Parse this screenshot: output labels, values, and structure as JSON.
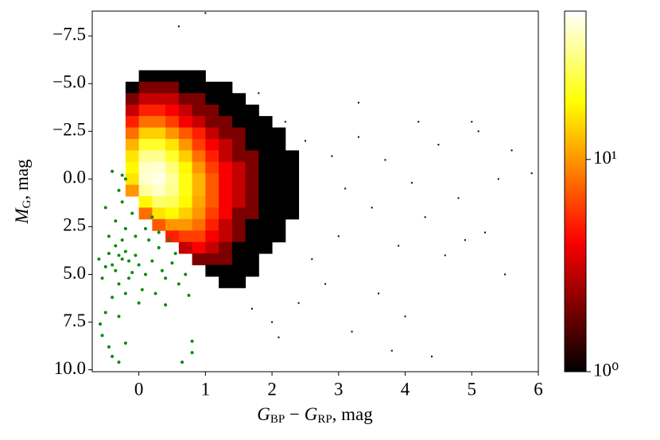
{
  "chart_data": {
    "type": "hist2d",
    "xlabel": [
      "G",
      "BP",
      " − ",
      "G",
      "RP",
      ", mag"
    ],
    "ylabel": [
      "M",
      "G",
      ", mag"
    ],
    "xlim": [
      -0.7,
      6
    ],
    "ylim": [
      -8.8,
      10.1
    ],
    "xticks": [
      0,
      1,
      2,
      3,
      4,
      5,
      6
    ],
    "yticks": [
      {
        "value": -7.5,
        "label": "−7.5"
      },
      {
        "value": -5,
        "label": "−5.0"
      },
      {
        "value": -2.5,
        "label": "−2.5"
      },
      {
        "value": 0,
        "label": "0.0"
      },
      2.5,
      {
        "value": 5,
        "label": "5.0"
      },
      7.5,
      {
        "value": 10,
        "label": "10.0"
      }
    ],
    "colormap": "hot",
    "color_scale": "log",
    "clim": [
      1,
      50
    ],
    "cticks": [
      {
        "value": 1,
        "label": "10⁰"
      },
      {
        "value": 10,
        "label": "10¹"
      }
    ],
    "cells": [
      [
        0.1,
        -5.4,
        1
      ],
      [
        0.3,
        -5.4,
        1
      ],
      [
        0.5,
        -5.4,
        1
      ],
      [
        0.7,
        -5.4,
        1
      ],
      [
        0.9,
        -5.4,
        1
      ],
      [
        -0.1,
        -4.8,
        1
      ],
      [
        0.1,
        -4.8,
        2
      ],
      [
        0.3,
        -4.8,
        2
      ],
      [
        0.5,
        -4.8,
        2
      ],
      [
        0.7,
        -4.8,
        1
      ],
      [
        0.9,
        -4.8,
        1
      ],
      [
        1.1,
        -4.8,
        1
      ],
      [
        1.3,
        -4.8,
        1
      ],
      [
        -0.1,
        -4.2,
        2
      ],
      [
        0.1,
        -4.2,
        3
      ],
      [
        0.3,
        -4.2,
        3
      ],
      [
        0.5,
        -4.2,
        3
      ],
      [
        0.7,
        -4.2,
        2
      ],
      [
        0.9,
        -4.2,
        2
      ],
      [
        1.1,
        -4.2,
        1
      ],
      [
        1.3,
        -4.2,
        1
      ],
      [
        1.5,
        -4.2,
        1
      ],
      [
        -0.1,
        -3.6,
        3
      ],
      [
        0.1,
        -3.6,
        5
      ],
      [
        0.3,
        -3.6,
        5
      ],
      [
        0.5,
        -3.6,
        4
      ],
      [
        0.7,
        -3.6,
        3
      ],
      [
        0.9,
        -3.6,
        2
      ],
      [
        1.1,
        -3.6,
        2
      ],
      [
        1.3,
        -3.6,
        1
      ],
      [
        1.5,
        -3.6,
        1
      ],
      [
        1.7,
        -3.6,
        1
      ],
      [
        -0.1,
        -3.0,
        5
      ],
      [
        0.1,
        -3.0,
        8
      ],
      [
        0.3,
        -3.0,
        8
      ],
      [
        0.5,
        -3.0,
        6
      ],
      [
        0.7,
        -3.0,
        4
      ],
      [
        0.9,
        -3.0,
        3
      ],
      [
        1.1,
        -3.0,
        2
      ],
      [
        1.3,
        -3.0,
        2
      ],
      [
        1.5,
        -3.0,
        1
      ],
      [
        1.7,
        -3.0,
        1
      ],
      [
        1.9,
        -3.0,
        1
      ],
      [
        -0.1,
        -2.4,
        8
      ],
      [
        0.1,
        -2.4,
        14
      ],
      [
        0.3,
        -2.4,
        14
      ],
      [
        0.5,
        -2.4,
        10
      ],
      [
        0.7,
        -2.4,
        7
      ],
      [
        0.9,
        -2.4,
        5
      ],
      [
        1.1,
        -2.4,
        3
      ],
      [
        1.3,
        -2.4,
        2
      ],
      [
        1.5,
        -2.4,
        2
      ],
      [
        1.7,
        -2.4,
        1
      ],
      [
        1.9,
        -2.4,
        1
      ],
      [
        2.1,
        -2.4,
        1
      ],
      [
        -0.1,
        -1.8,
        12
      ],
      [
        0.1,
        -1.8,
        22
      ],
      [
        0.3,
        -1.8,
        22
      ],
      [
        0.5,
        -1.8,
        16
      ],
      [
        0.7,
        -1.8,
        10
      ],
      [
        0.9,
        -1.8,
        6
      ],
      [
        1.1,
        -1.8,
        4
      ],
      [
        1.3,
        -1.8,
        3
      ],
      [
        1.5,
        -1.8,
        2
      ],
      [
        1.7,
        -1.8,
        1
      ],
      [
        1.9,
        -1.8,
        1
      ],
      [
        2.1,
        -1.8,
        1
      ],
      [
        -0.1,
        -1.2,
        16
      ],
      [
        0.1,
        -1.2,
        32
      ],
      [
        0.3,
        -1.2,
        32
      ],
      [
        0.5,
        -1.2,
        22
      ],
      [
        0.7,
        -1.2,
        14
      ],
      [
        0.9,
        -1.2,
        8
      ],
      [
        1.1,
        -1.2,
        5
      ],
      [
        1.3,
        -1.2,
        3
      ],
      [
        1.5,
        -1.2,
        2
      ],
      [
        1.7,
        -1.2,
        2
      ],
      [
        1.9,
        -1.2,
        1
      ],
      [
        2.1,
        -1.2,
        1
      ],
      [
        2.3,
        -1.2,
        1
      ],
      [
        -0.1,
        -0.6,
        18
      ],
      [
        0.1,
        -0.6,
        40
      ],
      [
        0.3,
        -0.6,
        42
      ],
      [
        0.5,
        -0.6,
        30
      ],
      [
        0.7,
        -0.6,
        18
      ],
      [
        0.9,
        -0.6,
        10
      ],
      [
        1.1,
        -0.6,
        6
      ],
      [
        1.3,
        -0.6,
        4
      ],
      [
        1.5,
        -0.6,
        3
      ],
      [
        1.7,
        -0.6,
        2
      ],
      [
        1.9,
        -0.6,
        1
      ],
      [
        2.1,
        -0.6,
        1
      ],
      [
        2.3,
        -0.6,
        1
      ],
      [
        -0.1,
        0,
        16
      ],
      [
        0.1,
        0,
        42
      ],
      [
        0.3,
        0,
        45
      ],
      [
        0.5,
        0,
        34
      ],
      [
        0.7,
        0,
        20
      ],
      [
        0.9,
        0,
        12
      ],
      [
        1.1,
        0,
        7
      ],
      [
        1.3,
        0,
        4
      ],
      [
        1.5,
        0,
        3
      ],
      [
        1.7,
        0,
        2
      ],
      [
        1.9,
        0,
        1
      ],
      [
        2.1,
        0,
        1
      ],
      [
        2.3,
        0,
        1
      ],
      [
        -0.1,
        0.6,
        10
      ],
      [
        0.1,
        0.6,
        34
      ],
      [
        0.3,
        0.6,
        40
      ],
      [
        0.5,
        0.6,
        32
      ],
      [
        0.7,
        0.6,
        20
      ],
      [
        0.9,
        0.6,
        12
      ],
      [
        1.1,
        0.6,
        7
      ],
      [
        1.3,
        0.6,
        4
      ],
      [
        1.5,
        0.6,
        3
      ],
      [
        1.7,
        0.6,
        2
      ],
      [
        1.9,
        0.6,
        1
      ],
      [
        2.1,
        0.6,
        1
      ],
      [
        2.3,
        0.6,
        1
      ],
      [
        0.1,
        1.2,
        18
      ],
      [
        0.3,
        1.2,
        28
      ],
      [
        0.5,
        1.2,
        26
      ],
      [
        0.7,
        1.2,
        18
      ],
      [
        0.9,
        1.2,
        11
      ],
      [
        1.1,
        1.2,
        7
      ],
      [
        1.3,
        1.2,
        4
      ],
      [
        1.5,
        1.2,
        3
      ],
      [
        1.7,
        1.2,
        2
      ],
      [
        1.9,
        1.2,
        1
      ],
      [
        2.1,
        1.2,
        1
      ],
      [
        2.3,
        1.2,
        1
      ],
      [
        0.1,
        1.8,
        8
      ],
      [
        0.3,
        1.8,
        16
      ],
      [
        0.5,
        1.8,
        18
      ],
      [
        0.7,
        1.8,
        14
      ],
      [
        0.9,
        1.8,
        10
      ],
      [
        1.1,
        1.8,
        6
      ],
      [
        1.3,
        1.8,
        4
      ],
      [
        1.5,
        1.8,
        2
      ],
      [
        1.7,
        1.8,
        2
      ],
      [
        1.9,
        1.8,
        1
      ],
      [
        2.1,
        1.8,
        1
      ],
      [
        2.3,
        1.8,
        1
      ],
      [
        0.3,
        2.4,
        7
      ],
      [
        0.5,
        2.4,
        10
      ],
      [
        0.7,
        2.4,
        10
      ],
      [
        0.9,
        2.4,
        8
      ],
      [
        1.1,
        2.4,
        5
      ],
      [
        1.3,
        2.4,
        3
      ],
      [
        1.5,
        2.4,
        2
      ],
      [
        1.7,
        2.4,
        1
      ],
      [
        1.9,
        2.4,
        1
      ],
      [
        2.1,
        2.4,
        1
      ],
      [
        0.5,
        3.0,
        5
      ],
      [
        0.7,
        3.0,
        6
      ],
      [
        0.9,
        3.0,
        6
      ],
      [
        1.1,
        3.0,
        4
      ],
      [
        1.3,
        3.0,
        3
      ],
      [
        1.5,
        3.0,
        2
      ],
      [
        1.7,
        3.0,
        1
      ],
      [
        1.9,
        3.0,
        1
      ],
      [
        2.1,
        3.0,
        1
      ],
      [
        0.7,
        3.6,
        3
      ],
      [
        0.9,
        3.6,
        4
      ],
      [
        1.1,
        3.6,
        3
      ],
      [
        1.3,
        3.6,
        2
      ],
      [
        1.5,
        3.6,
        1
      ],
      [
        1.7,
        3.6,
        1
      ],
      [
        1.9,
        3.6,
        1
      ],
      [
        0.9,
        4.2,
        2
      ],
      [
        1.1,
        4.2,
        2
      ],
      [
        1.3,
        4.2,
        2
      ],
      [
        1.5,
        4.2,
        1
      ],
      [
        1.7,
        4.2,
        1
      ],
      [
        1.1,
        4.8,
        1
      ],
      [
        1.3,
        4.8,
        1
      ],
      [
        1.5,
        4.8,
        1
      ],
      [
        1.7,
        4.8,
        1
      ],
      [
        1.3,
        5.4,
        1
      ],
      [
        1.5,
        5.4,
        1
      ]
    ],
    "sparse": [
      [
        1.8,
        -4.5
      ],
      [
        2.2,
        -3.0
      ],
      [
        2.5,
        -2.0
      ],
      [
        2.9,
        -1.2
      ],
      [
        3.1,
        0.5
      ],
      [
        3.3,
        -2.2
      ],
      [
        3.5,
        1.5
      ],
      [
        3.7,
        -1.0
      ],
      [
        3.9,
        3.5
      ],
      [
        4.1,
        0.2
      ],
      [
        4.3,
        2.0
      ],
      [
        4.5,
        -1.8
      ],
      [
        4.6,
        4.0
      ],
      [
        4.8,
        1.0
      ],
      [
        5.0,
        -3.0
      ],
      [
        5.2,
        2.8
      ],
      [
        5.4,
        0.0
      ],
      [
        5.6,
        -1.5
      ],
      [
        5.9,
        -0.3
      ],
      [
        2.4,
        6.5
      ],
      [
        3.2,
        8.0
      ],
      [
        2.8,
        5.5
      ],
      [
        4.0,
        7.2
      ],
      [
        3.6,
        6.0
      ],
      [
        1.7,
        6.8
      ],
      [
        2.0,
        7.5
      ],
      [
        4.4,
        9.3
      ],
      [
        5.1,
        -2.5
      ],
      [
        3.0,
        3.0
      ],
      [
        2.6,
        4.2
      ],
      [
        5.5,
        5.0
      ],
      [
        4.9,
        3.2
      ],
      [
        2.1,
        8.3
      ],
      [
        3.8,
        9.0
      ],
      [
        1.0,
        -8.7
      ],
      [
        0.6,
        -8.0
      ],
      [
        3.3,
        -4.0
      ],
      [
        4.2,
        -3.0
      ]
    ],
    "scatter": {
      "color": "#0a8a0a",
      "points": [
        [
          -0.35,
          3.5
        ],
        [
          -0.3,
          4.0
        ],
        [
          -0.4,
          4.5
        ],
        [
          -0.25,
          4.2
        ],
        [
          -0.2,
          3.8
        ],
        [
          -0.45,
          3.9
        ],
        [
          -0.5,
          4.6
        ],
        [
          -0.1,
          4.9
        ],
        [
          -0.15,
          5.2
        ],
        [
          0.0,
          4.5
        ],
        [
          0.1,
          5.0
        ],
        [
          0.2,
          4.3
        ],
        [
          0.3,
          3.6
        ],
        [
          -0.3,
          5.5
        ],
        [
          -0.2,
          6.0
        ],
        [
          0.05,
          5.8
        ],
        [
          0.4,
          5.2
        ],
        [
          0.5,
          4.4
        ],
        [
          0.6,
          5.5
        ],
        [
          0.7,
          5.0
        ],
        [
          -0.05,
          3.0
        ],
        [
          -0.2,
          2.6
        ],
        [
          -0.35,
          2.2
        ],
        [
          -0.1,
          1.8
        ],
        [
          -0.25,
          1.2
        ],
        [
          -0.3,
          0.6
        ],
        [
          -0.2,
          0.0
        ],
        [
          -0.4,
          -0.4
        ],
        [
          -0.25,
          -0.2
        ],
        [
          -0.5,
          1.5
        ],
        [
          -0.45,
          3.0
        ],
        [
          0.15,
          3.2
        ],
        [
          0.3,
          2.8
        ],
        [
          0.2,
          2.0
        ],
        [
          0.1,
          2.6
        ],
        [
          -0.6,
          4.2
        ],
        [
          -0.55,
          5.2
        ],
        [
          -0.4,
          6.2
        ],
        [
          -0.5,
          7.0
        ],
        [
          -0.58,
          7.6
        ],
        [
          -0.55,
          8.2
        ],
        [
          -0.45,
          8.8
        ],
        [
          -0.4,
          9.3
        ],
        [
          -0.3,
          9.6
        ],
        [
          -0.2,
          8.6
        ],
        [
          0.8,
          8.5
        ],
        [
          0.8,
          9.1
        ],
        [
          0.65,
          9.6
        ],
        [
          0.4,
          6.6
        ],
        [
          0.75,
          6.1
        ],
        [
          0.55,
          3.9
        ],
        [
          0.45,
          3.2
        ],
        [
          -0.15,
          4.3
        ],
        [
          -0.05,
          4.0
        ],
        [
          0.0,
          6.5
        ],
        [
          -0.3,
          7.2
        ],
        [
          0.25,
          6.0
        ],
        [
          -0.35,
          4.8
        ],
        [
          0.35,
          4.8
        ],
        [
          -0.25,
          3.2
        ]
      ]
    }
  }
}
